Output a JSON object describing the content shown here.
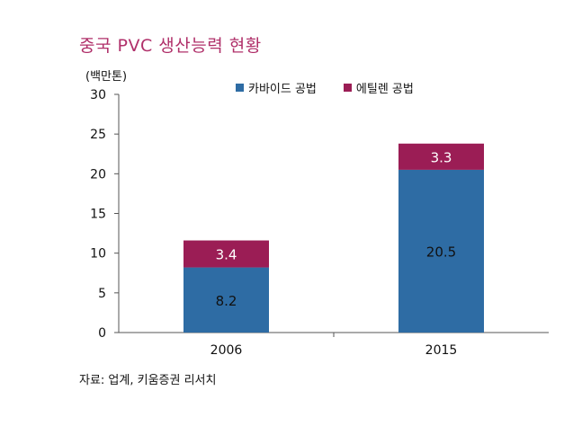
{
  "title": "중국 PVC 생산능력 현황",
  "unit_label": "(백만톤)",
  "source": "자료: 업계, 키움증권 리서치",
  "chart_data": {
    "type": "bar",
    "stacked": true,
    "categories": [
      "2006",
      "2015"
    ],
    "series": [
      {
        "name": "카바이드 공법",
        "values": [
          8.2,
          20.5
        ],
        "color": "#2e6ca4"
      },
      {
        "name": "에틸렌 공법",
        "values": [
          3.4,
          3.3
        ],
        "color": "#9b1d55"
      }
    ],
    "yticks": [
      0,
      5,
      10,
      15,
      20,
      25,
      30
    ],
    "ylim": [
      0,
      30
    ],
    "grid": false,
    "legend": "top"
  }
}
